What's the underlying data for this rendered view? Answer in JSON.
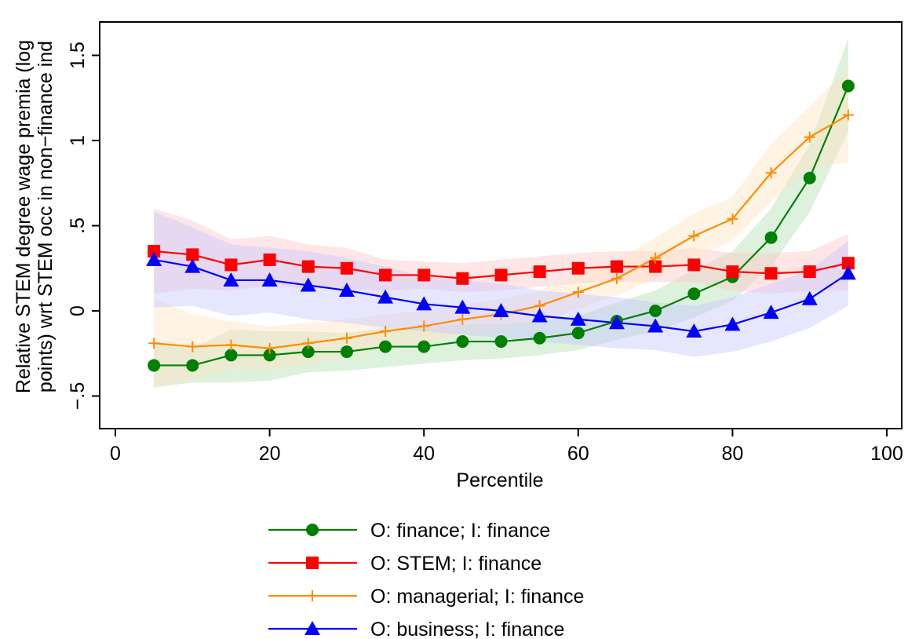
{
  "chart_data": {
    "type": "line",
    "xlabel": "Percentile",
    "ylabel_lines": [
      "Relative STEM degree wage premia (log",
      "points) wrt STEM occ in non−finance ind"
    ],
    "xlim": [
      0,
      100
    ],
    "ylim": [
      -0.7,
      1.7
    ],
    "x_ticks": [
      0,
      20,
      40,
      60,
      80,
      100
    ],
    "x_tick_labels": [
      "0",
      "20",
      "40",
      "60",
      "80",
      "100"
    ],
    "y_ticks": [
      -0.5,
      0,
      0.5,
      1,
      1.5
    ],
    "y_tick_labels": [
      "−.5",
      "0",
      ".5",
      "1",
      "1.5"
    ],
    "grid": false,
    "legend_position": "bottom",
    "x": [
      5,
      10,
      15,
      20,
      25,
      30,
      35,
      40,
      45,
      50,
      55,
      60,
      65,
      70,
      75,
      80,
      85,
      90,
      95
    ],
    "series": [
      {
        "name": "O: finance; I: finance",
        "color": "#008000",
        "band_color": "#b4e0b4",
        "marker": "circle",
        "values": [
          -0.32,
          -0.32,
          -0.26,
          -0.26,
          -0.24,
          -0.24,
          -0.21,
          -0.21,
          -0.18,
          -0.18,
          -0.16,
          -0.13,
          -0.06,
          0.0,
          0.1,
          0.2,
          0.43,
          0.78,
          1.32
        ],
        "lower": [
          -0.45,
          -0.42,
          -0.42,
          -0.41,
          -0.36,
          -0.35,
          -0.33,
          -0.31,
          -0.29,
          -0.28,
          -0.26,
          -0.23,
          -0.17,
          -0.12,
          -0.04,
          0.06,
          0.26,
          0.58,
          1.05
        ],
        "upper": [
          -0.19,
          -0.22,
          -0.11,
          -0.12,
          -0.12,
          -0.13,
          -0.1,
          -0.1,
          -0.08,
          -0.08,
          -0.06,
          -0.03,
          0.05,
          0.12,
          0.24,
          0.35,
          0.6,
          0.98,
          1.6
        ]
      },
      {
        "name": "O: STEM; I: finance",
        "color": "#ff0000",
        "band_color": "#ffc8c8",
        "marker": "square",
        "values": [
          0.35,
          0.33,
          0.27,
          0.3,
          0.26,
          0.25,
          0.21,
          0.21,
          0.19,
          0.21,
          0.23,
          0.25,
          0.26,
          0.26,
          0.27,
          0.23,
          0.22,
          0.23,
          0.28
        ],
        "lower": [
          0.1,
          0.13,
          0.12,
          0.15,
          0.13,
          0.13,
          0.12,
          0.13,
          0.11,
          0.12,
          0.14,
          0.16,
          0.17,
          0.17,
          0.17,
          0.12,
          0.1,
          0.12,
          0.12
        ],
        "upper": [
          0.6,
          0.53,
          0.42,
          0.44,
          0.39,
          0.37,
          0.3,
          0.29,
          0.28,
          0.3,
          0.32,
          0.34,
          0.35,
          0.35,
          0.37,
          0.34,
          0.34,
          0.35,
          0.45
        ]
      },
      {
        "name": "O: managerial; I: finance",
        "color": "#ff8c00",
        "band_color": "#ffe4c4",
        "marker": "plus",
        "values": [
          -0.19,
          -0.21,
          -0.2,
          -0.22,
          -0.19,
          -0.16,
          -0.12,
          -0.09,
          -0.05,
          -0.02,
          0.03,
          0.11,
          0.19,
          0.31,
          0.44,
          0.54,
          0.81,
          1.02,
          1.15
        ],
        "lower": [
          -0.45,
          -0.4,
          -0.34,
          -0.35,
          -0.31,
          -0.27,
          -0.22,
          -0.18,
          -0.14,
          -0.11,
          -0.06,
          0.01,
          0.09,
          0.19,
          0.31,
          0.41,
          0.64,
          0.84,
          0.87
        ],
        "upper": [
          0.07,
          -0.02,
          -0.06,
          -0.09,
          -0.07,
          -0.05,
          -0.02,
          0.0,
          0.04,
          0.07,
          0.12,
          0.21,
          0.3,
          0.43,
          0.57,
          0.67,
          0.98,
          1.2,
          1.43
        ]
      },
      {
        "name": "O: business; I: finance",
        "color": "#0000ff",
        "band_color": "#c8c8ff",
        "marker": "triangle",
        "values": [
          0.3,
          0.26,
          0.18,
          0.18,
          0.15,
          0.12,
          0.08,
          0.04,
          0.02,
          0.0,
          -0.03,
          -0.05,
          -0.07,
          -0.09,
          -0.12,
          -0.08,
          -0.01,
          0.07,
          0.22
        ],
        "lower": [
          0.02,
          0.03,
          -0.03,
          -0.01,
          -0.05,
          -0.07,
          -0.1,
          -0.12,
          -0.14,
          -0.16,
          -0.18,
          -0.2,
          -0.22,
          -0.23,
          -0.27,
          -0.24,
          -0.18,
          -0.1,
          0.03
        ],
        "upper": [
          0.58,
          0.49,
          0.39,
          0.37,
          0.35,
          0.31,
          0.26,
          0.2,
          0.18,
          0.16,
          0.12,
          0.1,
          0.08,
          0.05,
          0.03,
          0.08,
          0.16,
          0.24,
          0.41
        ]
      }
    ]
  }
}
